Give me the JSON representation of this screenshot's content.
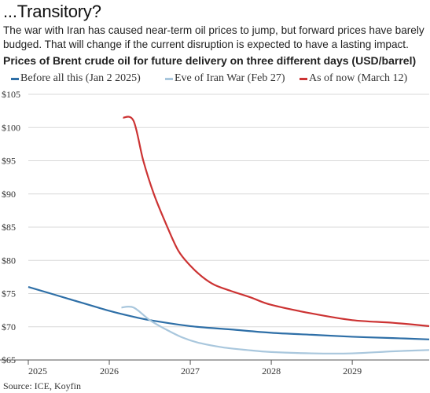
{
  "header": {
    "headline": "...Transitory?",
    "subtitle": "The war with Iran has caused near-term oil prices to jump, but forward prices have barely budged. That will change if the current disruption is expected to have a lasting impact."
  },
  "chart_data": {
    "type": "line",
    "title": "Prices of Brent crude oil for future delivery on three different days (USD/barrel)",
    "xlabel": "",
    "ylabel": "",
    "xlim": [
      2025,
      2029.95
    ],
    "ylim": [
      65,
      105
    ],
    "x_ticks": [
      2025,
      2026,
      2027,
      2028,
      2029
    ],
    "y_ticks": [
      65,
      70,
      75,
      80,
      85,
      90,
      95,
      100,
      105
    ],
    "y_tick_labels": [
      "$65",
      "$70",
      "$75",
      "$80",
      "$85",
      "$90",
      "$95",
      "$100",
      "$105"
    ],
    "grid": "horizontal",
    "legend_position": "top",
    "series": [
      {
        "name": "Before all this (Jan 2 2025)",
        "color": "#2e6fa7",
        "points": [
          [
            2025.0,
            76.0
          ],
          [
            2025.5,
            74.2
          ],
          [
            2026.0,
            72.4
          ],
          [
            2026.3,
            71.5
          ],
          [
            2026.5,
            71.0
          ],
          [
            2027.0,
            70.1
          ],
          [
            2027.5,
            69.6
          ],
          [
            2028.0,
            69.1
          ],
          [
            2028.5,
            68.8
          ],
          [
            2029.0,
            68.5
          ],
          [
            2029.5,
            68.3
          ],
          [
            2029.95,
            68.1
          ]
        ]
      },
      {
        "name": "Eve of Iran War (Feb 27)",
        "color": "#a9c7dd",
        "points": [
          [
            2026.15,
            72.9
          ],
          [
            2026.3,
            72.9
          ],
          [
            2026.5,
            71.0
          ],
          [
            2026.7,
            69.6
          ],
          [
            2026.9,
            68.4
          ],
          [
            2027.1,
            67.6
          ],
          [
            2027.4,
            66.9
          ],
          [
            2027.7,
            66.5
          ],
          [
            2028.0,
            66.2
          ],
          [
            2028.5,
            66.0
          ],
          [
            2029.0,
            66.0
          ],
          [
            2029.5,
            66.3
          ],
          [
            2029.95,
            66.5
          ]
        ]
      },
      {
        "name": "As of now (March 12)",
        "color": "#cc3333",
        "points": [
          [
            2026.17,
            101.5
          ],
          [
            2026.3,
            101.0
          ],
          [
            2026.42,
            95.0
          ],
          [
            2026.55,
            90.0
          ],
          [
            2026.7,
            85.5
          ],
          [
            2026.85,
            81.5
          ],
          [
            2027.0,
            79.2
          ],
          [
            2027.15,
            77.5
          ],
          [
            2027.3,
            76.3
          ],
          [
            2027.5,
            75.4
          ],
          [
            2027.75,
            74.4
          ],
          [
            2028.0,
            73.3
          ],
          [
            2028.5,
            72.0
          ],
          [
            2029.0,
            71.0
          ],
          [
            2029.5,
            70.6
          ],
          [
            2029.95,
            70.1
          ]
        ]
      }
    ]
  },
  "footer": {
    "source": "Source: ICE, Koyfin"
  }
}
